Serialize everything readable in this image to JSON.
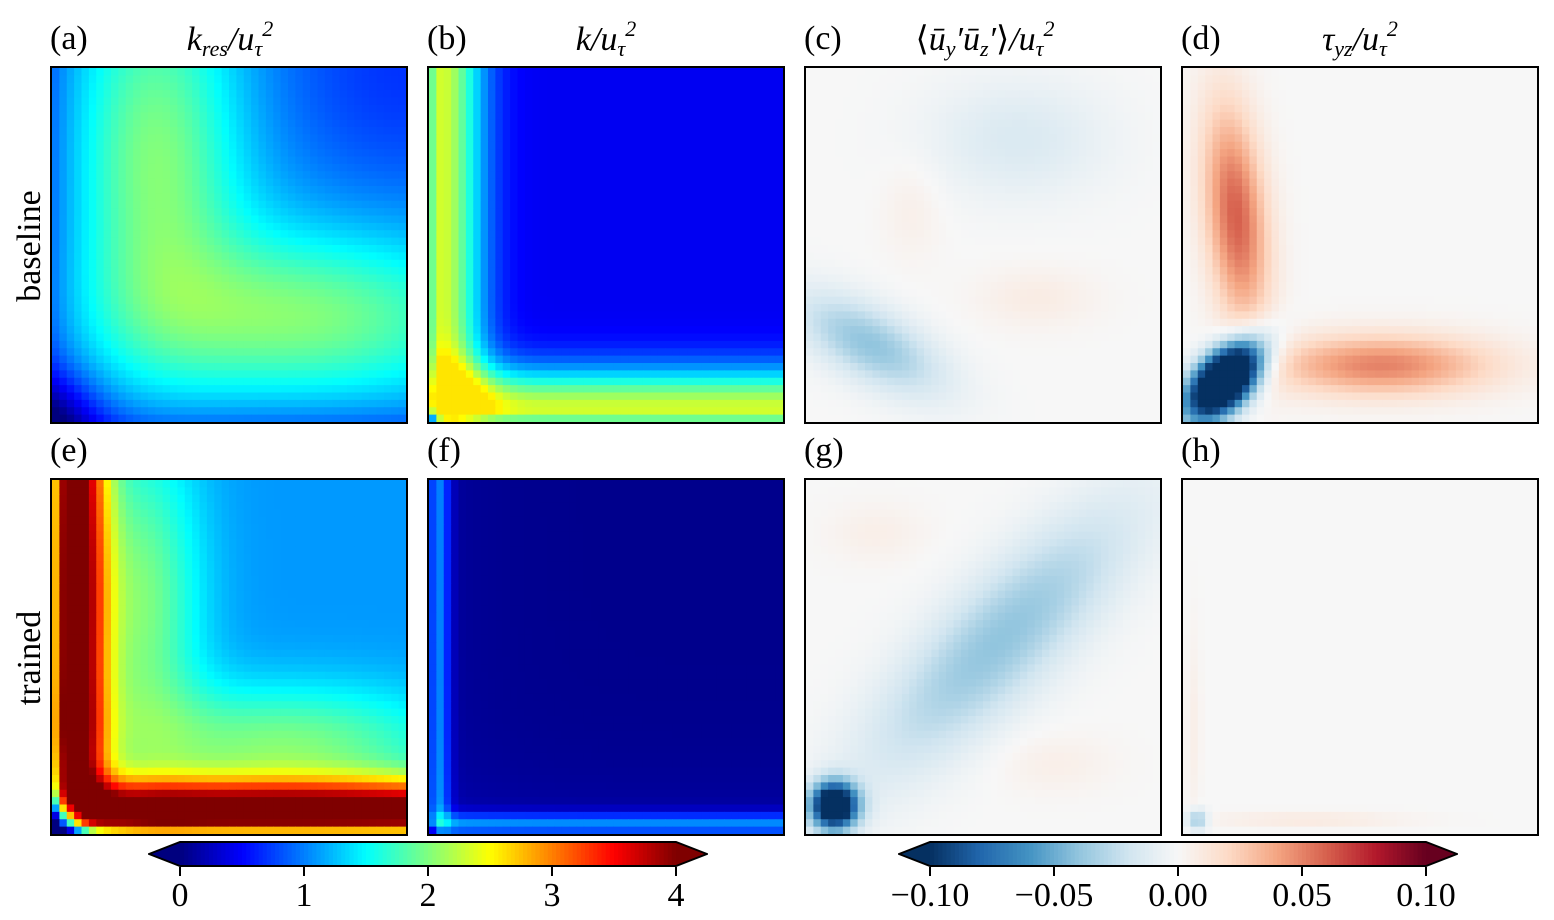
{
  "panels": [
    {
      "id": "a",
      "label": "(a)",
      "title_main": "k",
      "title_sub": "res",
      "title_den": "/u",
      "title_den_sub": "τ",
      "title_den_sup": "2",
      "row": "baseline",
      "field": "kres_baseline",
      "cmap": "jet"
    },
    {
      "id": "b",
      "label": "(b)",
      "title_main": "k",
      "title_sub": "",
      "title_den": "/u",
      "title_den_sub": "τ",
      "title_den_sup": "2",
      "row": "baseline",
      "field": "k_baseline",
      "cmap": "jet"
    },
    {
      "id": "c",
      "label": "(c)",
      "title_text": "⟨ū_y′ū_z′⟩/u_τ²",
      "row": "baseline",
      "field": "uyuz_baseline",
      "cmap": "RdBu_r"
    },
    {
      "id": "d",
      "label": "(d)",
      "title_main": "τ",
      "title_sub": "yz",
      "title_den": "/u",
      "title_den_sub": "τ",
      "title_den_sup": "2",
      "row": "baseline",
      "field": "tau_baseline",
      "cmap": "RdBu_r"
    },
    {
      "id": "e",
      "label": "(e)",
      "row": "trained",
      "field": "kres_trained",
      "cmap": "jet"
    },
    {
      "id": "f",
      "label": "(f)",
      "row": "trained",
      "field": "k_trained",
      "cmap": "jet"
    },
    {
      "id": "g",
      "label": "(g)",
      "row": "trained",
      "field": "uyuz_trained",
      "cmap": "RdBu_r"
    },
    {
      "id": "h",
      "label": "(h)",
      "row": "trained",
      "field": "tau_trained",
      "cmap": "RdBu_r"
    }
  ],
  "row_labels": {
    "baseline": "baseline",
    "trained": "trained"
  },
  "titles": {
    "a": {
      "k": "k",
      "res": "res",
      "den": "/u",
      "tau": "τ",
      "sq": "2"
    },
    "b": {
      "k": "k",
      "den": "/u",
      "tau": "τ",
      "sq": "2"
    },
    "c": {
      "open": "⟨",
      "u1": "ū",
      "y": "y",
      "prime1": "′",
      "u2": "ū",
      "z": "z",
      "prime2": "′",
      "close": "⟩",
      "den": "/u",
      "tau": "τ",
      "sq": "2"
    },
    "d": {
      "tau1": "τ",
      "yz": "yz",
      "den": "/u",
      "tau": "τ",
      "sq": "2"
    }
  },
  "chart_data": [
    {
      "type": "heatmap",
      "name": "colorbar-jet",
      "cmap": "jet",
      "extend": "both",
      "vmin": 0,
      "vmax": 4,
      "ticks": [
        0,
        1,
        2,
        3,
        4
      ],
      "tick_labels": [
        "0",
        "1",
        "2",
        "3",
        "4"
      ]
    },
    {
      "type": "heatmap",
      "name": "colorbar-diverging",
      "cmap": "RdBu_r",
      "extend": "both",
      "vmin": -0.1,
      "vmax": 0.1,
      "ticks": [
        -0.1,
        -0.05,
        0.0,
        0.05,
        0.1
      ],
      "tick_labels": [
        "−0.10",
        "−0.05",
        "0.00",
        "0.05",
        "0.10"
      ]
    }
  ],
  "colors": {
    "jet_low": "#00007f",
    "jet_high": "#7f0000",
    "div_low": "#053061",
    "div_mid": "#f7f7f7",
    "div_high": "#67001f",
    "frame": "#000000"
  }
}
